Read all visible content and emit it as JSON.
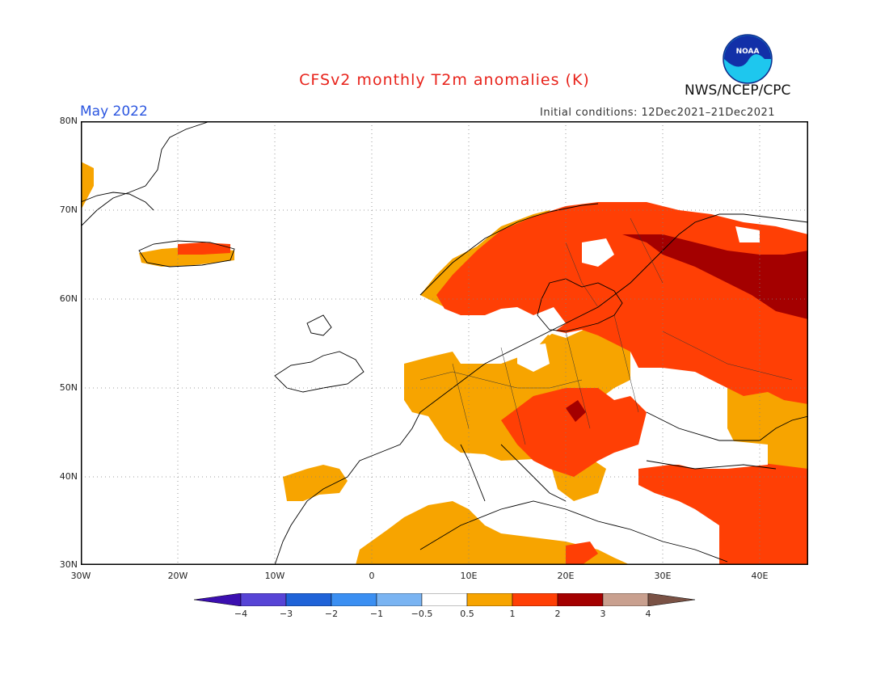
{
  "header": {
    "title": "CFSv2 monthly T2m anomalies (K)",
    "month": "May 2022",
    "initial_conditions": "Initial conditions: 12Dec2021–21Dec2021",
    "org": "NWS/NCEP/CPC",
    "logo_text": "NOAA"
  },
  "map": {
    "lon_range": [
      -30,
      45
    ],
    "lat_range": [
      30,
      80
    ],
    "y_ticks": [
      "80N",
      "70N",
      "60N",
      "50N",
      "40N",
      "30N"
    ],
    "x_ticks": [
      "30W",
      "20W",
      "10W",
      "0",
      "10E",
      "20E",
      "30E",
      "40E"
    ],
    "grid": "dotted"
  },
  "colorbar": {
    "labels": [
      "−4",
      "−3",
      "−2",
      "−1",
      "−0.5",
      "0.5",
      "1",
      "2",
      "3",
      "4"
    ],
    "colors": [
      "#3b0fb0",
      "#5744d6",
      "#1f63d8",
      "#3b8ff2",
      "#7ab4f2",
      "#ffffff",
      "#f7a400",
      "#ff3f05",
      "#a40000",
      "#c9a08f",
      "#7a5245"
    ]
  }
}
